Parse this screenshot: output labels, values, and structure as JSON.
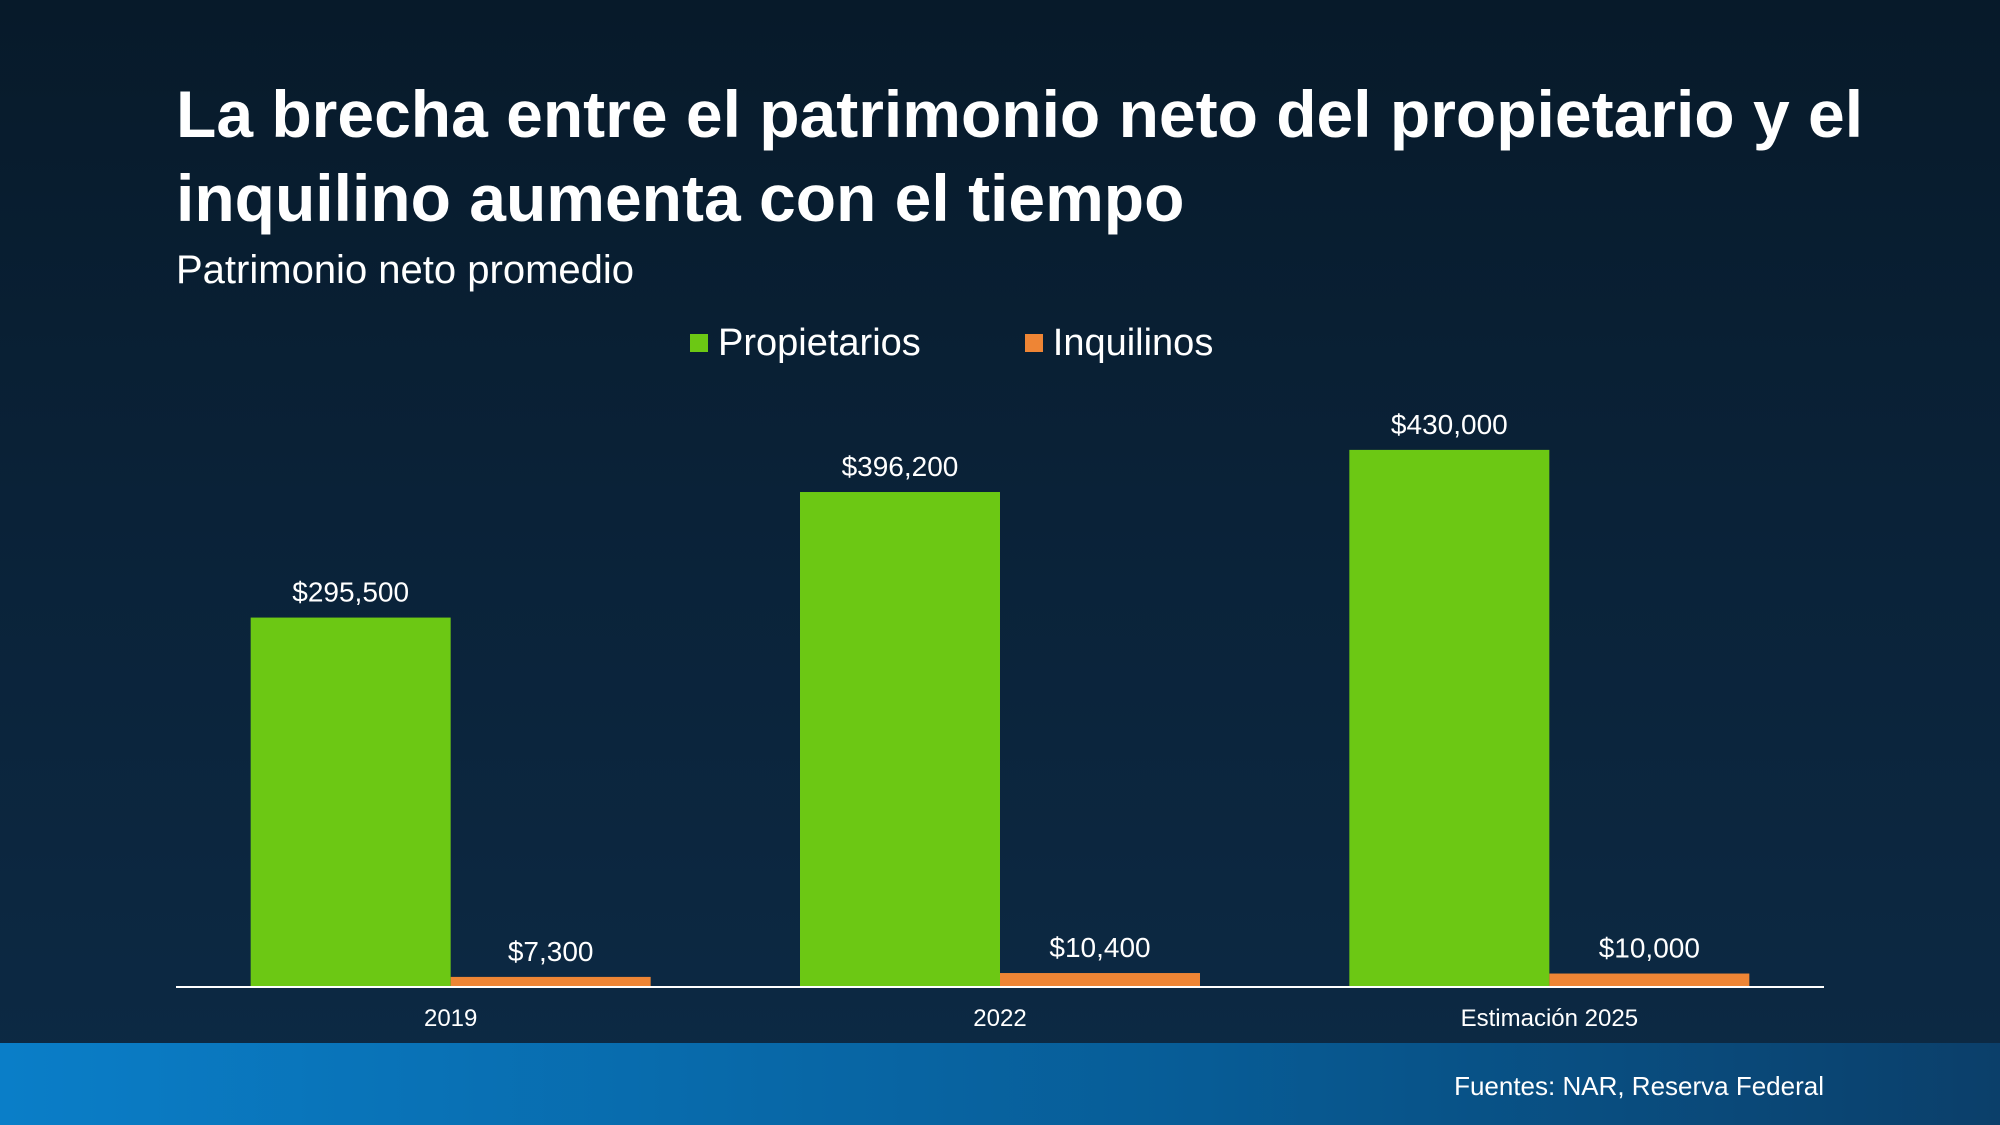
{
  "title": "La brecha entre el patrimonio neto del propietario y el inquilino aumenta con el tiempo",
  "subtitle": "Patrimonio neto promedio",
  "legend": {
    "owners": "Propietarios",
    "renters": "Inquilinos"
  },
  "footer": {
    "source": "Fuentes: NAR, Reserva Federal"
  },
  "colors": {
    "owners": "#6cc814",
    "renters": "#ee8535",
    "axis": "#ffffff"
  },
  "chart_data": {
    "type": "bar",
    "title": "La brecha entre el patrimonio neto del propietario y el inquilino aumenta con el tiempo",
    "subtitle": "Patrimonio neto promedio",
    "xlabel": "",
    "ylabel": "",
    "categories": [
      "2019",
      "2022",
      "Estimación 2025"
    ],
    "series": [
      {
        "name": "Propietarios",
        "values": [
          295500,
          396200,
          430000
        ],
        "labels": [
          "$295,500",
          "$396,200",
          "$430,000"
        ]
      },
      {
        "name": "Inquilinos",
        "values": [
          7300,
          10400,
          10000
        ],
        "labels": [
          "$7,300",
          "$10,400",
          "$10,000"
        ]
      }
    ],
    "ylim": [
      0,
      470000
    ],
    "grid": false,
    "legend_position": "top-center"
  }
}
